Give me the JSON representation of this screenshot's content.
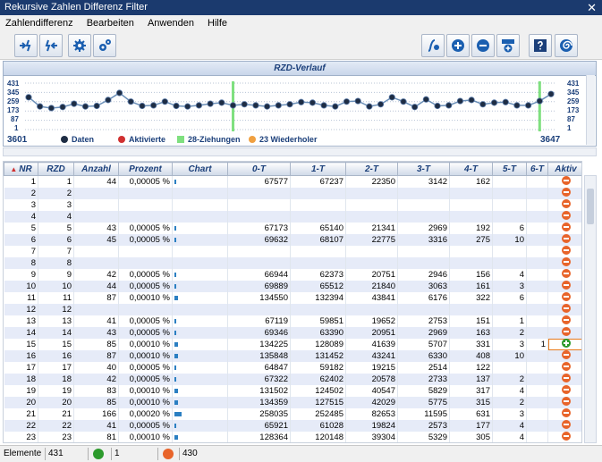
{
  "window": {
    "title": "Rekursive Zahlen Differenz Filter",
    "close_glyph": "✕"
  },
  "menu": [
    "Zahlendifferenz",
    "Bearbeiten",
    "Anwenden",
    "Hilfe"
  ],
  "toolbar": {
    "icons": [
      "filter-forward-icon",
      "filter-backward-icon",
      "gear-icon",
      "gears-icon",
      "function-icon",
      "plus-circle-icon",
      "minus-circle-icon",
      "hundred-plus-icon",
      "help-icon",
      "spiral-icon"
    ]
  },
  "chart": {
    "title": "RZD-Verlauf",
    "ylabels": [
      "431",
      "345",
      "259",
      "173",
      "87",
      "1"
    ],
    "x_start": "3601",
    "x_end": "3647",
    "legend": {
      "data": "Daten",
      "activated": "Aktivierte",
      "z28": "28-Ziehungen",
      "repeat": "23 Wiederholer"
    },
    "colors": {
      "line": "#6a8fb8",
      "dot": "#1e2d44",
      "green": "#7fe07f",
      "red": "#d03030",
      "orange": "#f0a040"
    }
  },
  "chart_data": {
    "type": "line",
    "ylim": [
      1,
      431
    ],
    "values": [
      300,
      215,
      200,
      210,
      240,
      215,
      220,
      275,
      340,
      260,
      220,
      225,
      260,
      220,
      215,
      225,
      240,
      250,
      225,
      235,
      225,
      215,
      225,
      235,
      255,
      250,
      225,
      215,
      260,
      265,
      215,
      235,
      300,
      260,
      210,
      280,
      220,
      225,
      265,
      275,
      235,
      250,
      255,
      225,
      225,
      265,
      330
    ],
    "green_markers": [
      18,
      45
    ]
  },
  "table": {
    "headers": [
      "NR",
      "RZD",
      "Anzahl",
      "Prozent",
      "Chart",
      "0-T",
      "1-T",
      "2-T",
      "3-T",
      "4-T",
      "5-T",
      "6-T",
      "Aktiv"
    ],
    "rows": [
      [
        "1",
        "1",
        "44",
        "0,00005 %",
        1,
        "67577",
        "67237",
        "22350",
        "3142",
        "162",
        "",
        "",
        ""
      ],
      [
        "2",
        "2",
        "",
        "",
        0,
        "",
        "",
        "",
        "",
        "",
        "",
        "",
        ""
      ],
      [
        "3",
        "3",
        "",
        "",
        0,
        "",
        "",
        "",
        "",
        "",
        "",
        "",
        ""
      ],
      [
        "4",
        "4",
        "",
        "",
        0,
        "",
        "",
        "",
        "",
        "",
        "",
        "",
        ""
      ],
      [
        "5",
        "5",
        "43",
        "0,00005 %",
        1,
        "67173",
        "65140",
        "21341",
        "2969",
        "192",
        "6",
        "",
        ""
      ],
      [
        "6",
        "6",
        "45",
        "0,00005 %",
        1,
        "69632",
        "68107",
        "22775",
        "3316",
        "275",
        "10",
        "",
        ""
      ],
      [
        "7",
        "7",
        "",
        "",
        0,
        "",
        "",
        "",
        "",
        "",
        "",
        "",
        ""
      ],
      [
        "8",
        "8",
        "",
        "",
        0,
        "",
        "",
        "",
        "",
        "",
        "",
        "",
        ""
      ],
      [
        "9",
        "9",
        "42",
        "0,00005 %",
        1,
        "66944",
        "62373",
        "20751",
        "2946",
        "156",
        "4",
        "",
        ""
      ],
      [
        "10",
        "10",
        "44",
        "0,00005 %",
        1,
        "69889",
        "65512",
        "21840",
        "3063",
        "161",
        "3",
        "",
        ""
      ],
      [
        "11",
        "11",
        "87",
        "0,00010 %",
        2,
        "134550",
        "132394",
        "43841",
        "6176",
        "322",
        "6",
        "",
        ""
      ],
      [
        "12",
        "12",
        "",
        "",
        0,
        "",
        "",
        "",
        "",
        "",
        "",
        "",
        ""
      ],
      [
        "13",
        "13",
        "41",
        "0,00005 %",
        1,
        "67119",
        "59851",
        "19652",
        "2753",
        "151",
        "1",
        "",
        ""
      ],
      [
        "14",
        "14",
        "43",
        "0,00005 %",
        1,
        "69346",
        "63390",
        "20951",
        "2969",
        "163",
        "2",
        "",
        ""
      ],
      [
        "15",
        "15",
        "85",
        "0,00010 %",
        2,
        "134225",
        "128089",
        "41639",
        "5707",
        "331",
        "3",
        "1",
        "green"
      ],
      [
        "16",
        "16",
        "87",
        "0,00010 %",
        2,
        "135848",
        "131452",
        "43241",
        "6330",
        "408",
        "10",
        "",
        ""
      ],
      [
        "17",
        "17",
        "40",
        "0,00005 %",
        1,
        "64847",
        "59182",
        "19215",
        "2514",
        "122",
        "",
        "",
        ""
      ],
      [
        "18",
        "18",
        "42",
        "0,00005 %",
        1,
        "67322",
        "62402",
        "20578",
        "2733",
        "137",
        "2",
        "",
        ""
      ],
      [
        "19",
        "19",
        "83",
        "0,00010 %",
        2,
        "131502",
        "124502",
        "40547",
        "5829",
        "317",
        "4",
        "",
        ""
      ],
      [
        "20",
        "20",
        "85",
        "0,00010 %",
        2,
        "134359",
        "127515",
        "42029",
        "5775",
        "315",
        "2",
        "",
        ""
      ],
      [
        "21",
        "21",
        "166",
        "0,00020 %",
        4,
        "258035",
        "252485",
        "82653",
        "11595",
        "631",
        "3",
        "",
        ""
      ],
      [
        "22",
        "22",
        "41",
        "0,00005 %",
        1,
        "65921",
        "61028",
        "19824",
        "2573",
        "177",
        "4",
        "",
        ""
      ],
      [
        "23",
        "23",
        "81",
        "0,00010 %",
        2,
        "128364",
        "120148",
        "39304",
        "5329",
        "305",
        "4",
        "",
        ""
      ]
    ]
  },
  "status": {
    "label": "Elemente",
    "count": "431",
    "green_count": "1",
    "red_count": "430"
  }
}
